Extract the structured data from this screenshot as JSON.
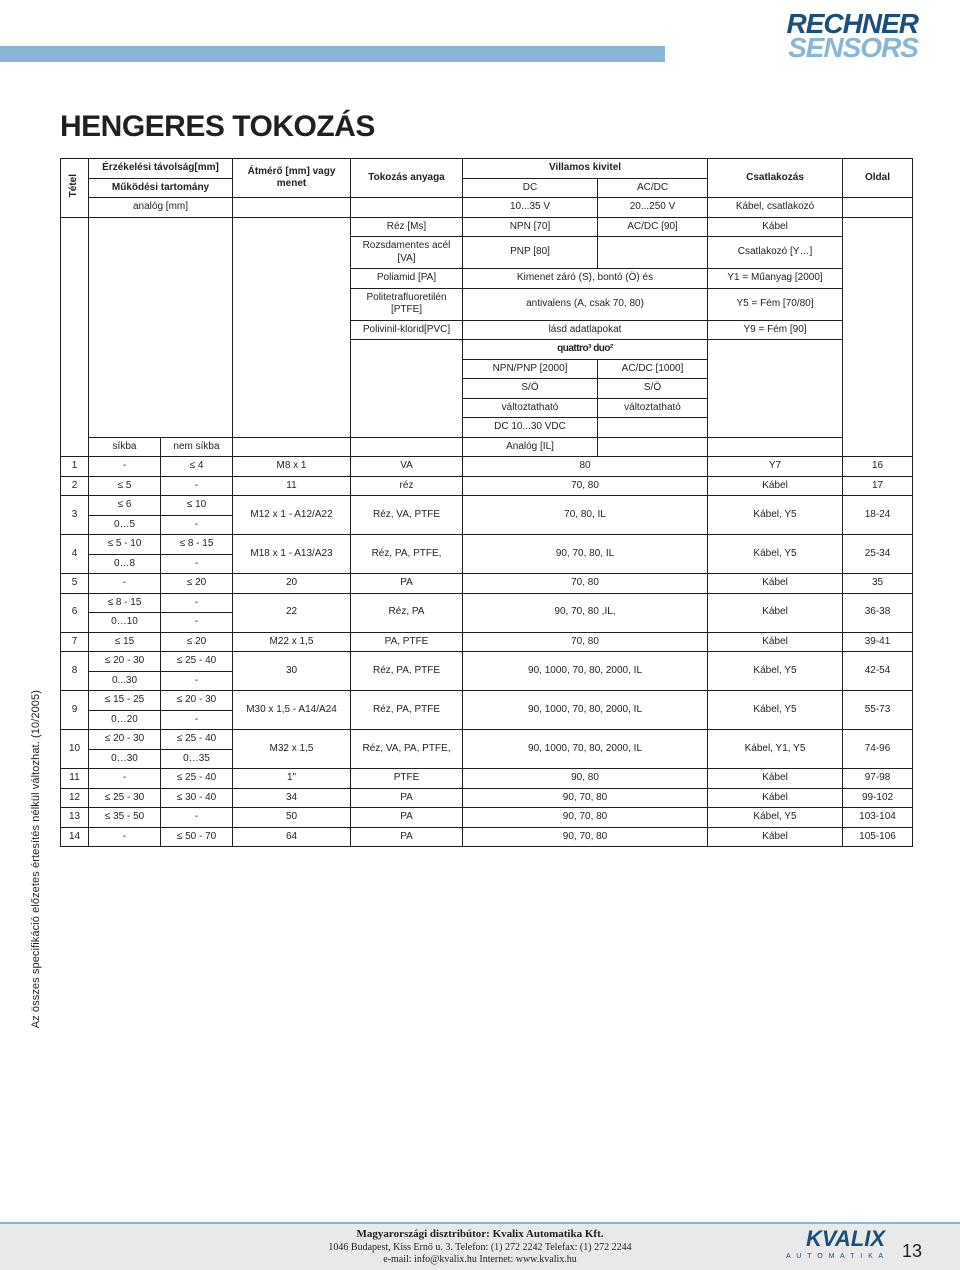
{
  "logo": {
    "line1": "RECHNER",
    "line2": "SENSORS"
  },
  "page_title": "HENGERES TOKOZÁS",
  "side_note": "Az összes specifikáció előzetes értesítés nélkül változhat. (10/2005)",
  "footer": {
    "line1": "Magyarországi disztribútor: Kvalix Automatika Kft.",
    "line2": "1046 Budapest, Kiss Ernő u. 3.    Telefon: (1) 272 2242   Telefax: (1) 272 2244",
    "line3": "e-mail: info@kvalix.hu    Internet: www.kvalix.hu",
    "kvalix": "KVALIX",
    "kvalix_sub": "A U T O M A T I K A"
  },
  "page_number": "13",
  "header": {
    "tetel": "Tétel",
    "col1a": "Érzékelési távolság[mm]",
    "col1b": "Működési tartomány",
    "col1c": "analóg [mm]",
    "col2a": "Átmérő [mm] vagy menet",
    "col3a": "Tokozás anyaga",
    "col45a": "Villamos kivitel",
    "col4b": "DC",
    "col5b": "AC/DC",
    "col45c": "10...35 V",
    "col45d": "20...250 V",
    "col6a": "Csatlakozás",
    "col6c": "Kábel, csatlakozó",
    "col7a": "Oldal"
  },
  "mid_header": {
    "mat1": "Réz [Ms]",
    "el1a": "NPN [70]",
    "el1b": "AC/DC [90]",
    "con1": "Kábel",
    "mat2": "Rozsdamentes acél [VA]",
    "el2a": "PNP [80]",
    "con2": "Csatlakozó [Y…]",
    "mat3": "Poliamid [PA]",
    "el3a": "Kimenet záró (S), bontó (Ö) és",
    "con3": "Y1 = Műanyag [2000]",
    "mat4": "Politetrafluoretilén [PTFE]",
    "el4a": "antivalens (A, csak 70, 80)",
    "con4": "Y5 = Fém [70/80]",
    "mat5": "Polivinil-klorid[PVC]",
    "el5a": "lásd adatlapokat",
    "con5": "Y9 = Fém [90]",
    "logos": "quattro³        duo²",
    "row7a": "NPN/PNP [2000]",
    "row7b": "AC/DC [1000]",
    "row8a": "S/Ö",
    "row8b": "S/Ö",
    "row9a": "változtatható",
    "row9b": "változtatható",
    "row10a": "DC 10...30 VDC",
    "row11l1": "síkba",
    "row11l2": "nem síkba",
    "row11m": "Analóg [IL]"
  },
  "rows": [
    {
      "n": "1",
      "c1": "-",
      "c2": "≤ 4",
      "c3": "M8 x 1",
      "c4": "VA",
      "c5": "80",
      "c6": "",
      "c7": "Y7",
      "c8": "16"
    },
    {
      "n": "2",
      "c1": "≤ 5",
      "c2": "-",
      "c3": "11",
      "c4": "réz",
      "c5": "70, 80",
      "c6": "",
      "c7": "Kábel",
      "c8": "17"
    },
    {
      "n": "3",
      "c1a": "≤ 6",
      "c2a": "≤ 10",
      "c1b": "0…5",
      "c2b": "-",
      "c3": "M12 x 1 - A12/A22",
      "c4": "Réz, VA, PTFE",
      "c5": "70, 80, IL",
      "c7": "Kábel, Y5",
      "c8": "18-24"
    },
    {
      "n": "4",
      "c1a": "≤ 5 - 10",
      "c2a": "≤ 8 - 15",
      "c1b": "0…8",
      "c2b": "-",
      "c3": "M18 x 1 - A13/A23",
      "c4": "Réz, PA, PTFE,",
      "c5": "90, 70, 80, IL",
      "c7": "Kábel, Y5",
      "c8": "25-34"
    },
    {
      "n": "5",
      "c1": "-",
      "c2": "≤ 20",
      "c3": "20",
      "c4": "PA",
      "c5": "70, 80",
      "c6": "",
      "c7": "Kábel",
      "c8": "35"
    },
    {
      "n": "6",
      "c1a": "≤ 8 - 15",
      "c2a": "-",
      "c1b": "0…10",
      "c2b": "-",
      "c3": "22",
      "c4": "Réz, PA",
      "c5": "90, 70, 80 ,IL,",
      "c7": "Kábel",
      "c8": "36-38"
    },
    {
      "n": "7",
      "c1": "≤ 15",
      "c2": "≤ 20",
      "c3": "M22 x 1,5",
      "c4": "PA, PTFE",
      "c5": "70, 80",
      "c6": "",
      "c7": "Kábel",
      "c8": "39-41"
    },
    {
      "n": "8",
      "c1a": "≤ 20 - 30",
      "c2a": "≤ 25 - 40",
      "c1b": "0...30",
      "c2b": "-",
      "c3": "30",
      "c4": "Réz, PA, PTFE",
      "c5": "90, 1000, 70, 80, 2000, IL",
      "c7": "Kábel, Y5",
      "c8": "42-54"
    },
    {
      "n": "9",
      "c1a": "≤ 15 - 25",
      "c2a": "≤ 20 - 30",
      "c1b": "0…20",
      "c2b": "-",
      "c3": "M30 x 1,5 - A14/A24",
      "c4": "Réz, PA, PTFE",
      "c5": "90, 1000, 70, 80, 2000, IL",
      "c7": "Kábel, Y5",
      "c8": "55-73"
    },
    {
      "n": "10",
      "c1a": "≤ 20 - 30",
      "c2a": "≤ 25 - 40",
      "c1b": "0…30",
      "c2b": "0…35",
      "c3": "M32 x 1,5",
      "c4": "Réz, VA, PA, PTFE,",
      "c5": "90, 1000, 70, 80, 2000, IL",
      "c7": "Kábel, Y1, Y5",
      "c8": "74-96"
    },
    {
      "n": "11",
      "c1": "-",
      "c2": "≤ 25 - 40",
      "c3": "1\"",
      "c4": "PTFE",
      "c5": "90, 80",
      "c6": "",
      "c7": "Kábel",
      "c8": "97-98"
    },
    {
      "n": "12",
      "c1": "≤ 25 - 30",
      "c2": "≤ 30 - 40",
      "c3": "34",
      "c4": "PA",
      "c5": "90, 70, 80",
      "c6": "",
      "c7": "Kábel",
      "c8": "99-102"
    },
    {
      "n": "13",
      "c1": "≤ 35 - 50",
      "c2": "-",
      "c3": "50",
      "c4": "PA",
      "c5": "90, 70, 80",
      "c6": "",
      "c7": "Kábel, Y5",
      "c8": "103-104"
    },
    {
      "n": "14",
      "c1": "-",
      "c2": "≤ 50 - 70",
      "c3": "64",
      "c4": "PA",
      "c5": "90, 70, 80",
      "c6": "",
      "c7": "Kábel",
      "c8": "105-106"
    }
  ],
  "colors": {
    "stripe": "#8bb5d6",
    "logo_dark": "#1c4f7c",
    "text": "#231f20",
    "footer_bg": "#e9e9e9"
  }
}
